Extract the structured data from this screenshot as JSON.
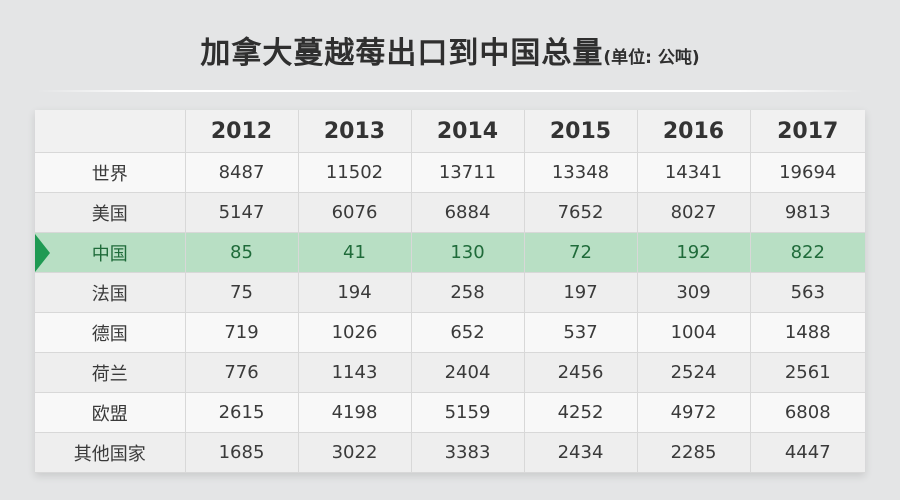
{
  "title": "加拿大蔓越莓出口到中国总量",
  "unit": "(单位: 公吨)",
  "chart_data": {
    "type": "table",
    "columns": [
      "",
      "2012",
      "2013",
      "2014",
      "2015",
      "2016",
      "2017"
    ],
    "rows": [
      {
        "label": "世界",
        "values": [
          "8487",
          "11502",
          "13711",
          "13348",
          "14341",
          "19694"
        ]
      },
      {
        "label": "美国",
        "values": [
          "5147",
          "6076",
          "6884",
          "7652",
          "8027",
          "9813"
        ]
      },
      {
        "label": "中国",
        "values": [
          "85",
          "41",
          "130",
          "72",
          "192",
          "822"
        ],
        "highlight": true
      },
      {
        "label": "法国",
        "values": [
          "75",
          "194",
          "258",
          "197",
          "309",
          "563"
        ]
      },
      {
        "label": "德国",
        "values": [
          "719",
          "1026",
          "652",
          "537",
          "1004",
          "1488"
        ]
      },
      {
        "label": "荷兰",
        "values": [
          "776",
          "1143",
          "2404",
          "2456",
          "2524",
          "2561"
        ]
      },
      {
        "label": "欧盟",
        "values": [
          "2615",
          "4198",
          "5159",
          "4252",
          "4972",
          "6808"
        ]
      },
      {
        "label": "其他国家",
        "values": [
          "1685",
          "3022",
          "3383",
          "2434",
          "2285",
          "4447"
        ]
      }
    ]
  },
  "colors": {
    "highlight_row": "#b8dfc4",
    "highlight_text": "#1f6b3a",
    "marker": "#1f9a53"
  }
}
